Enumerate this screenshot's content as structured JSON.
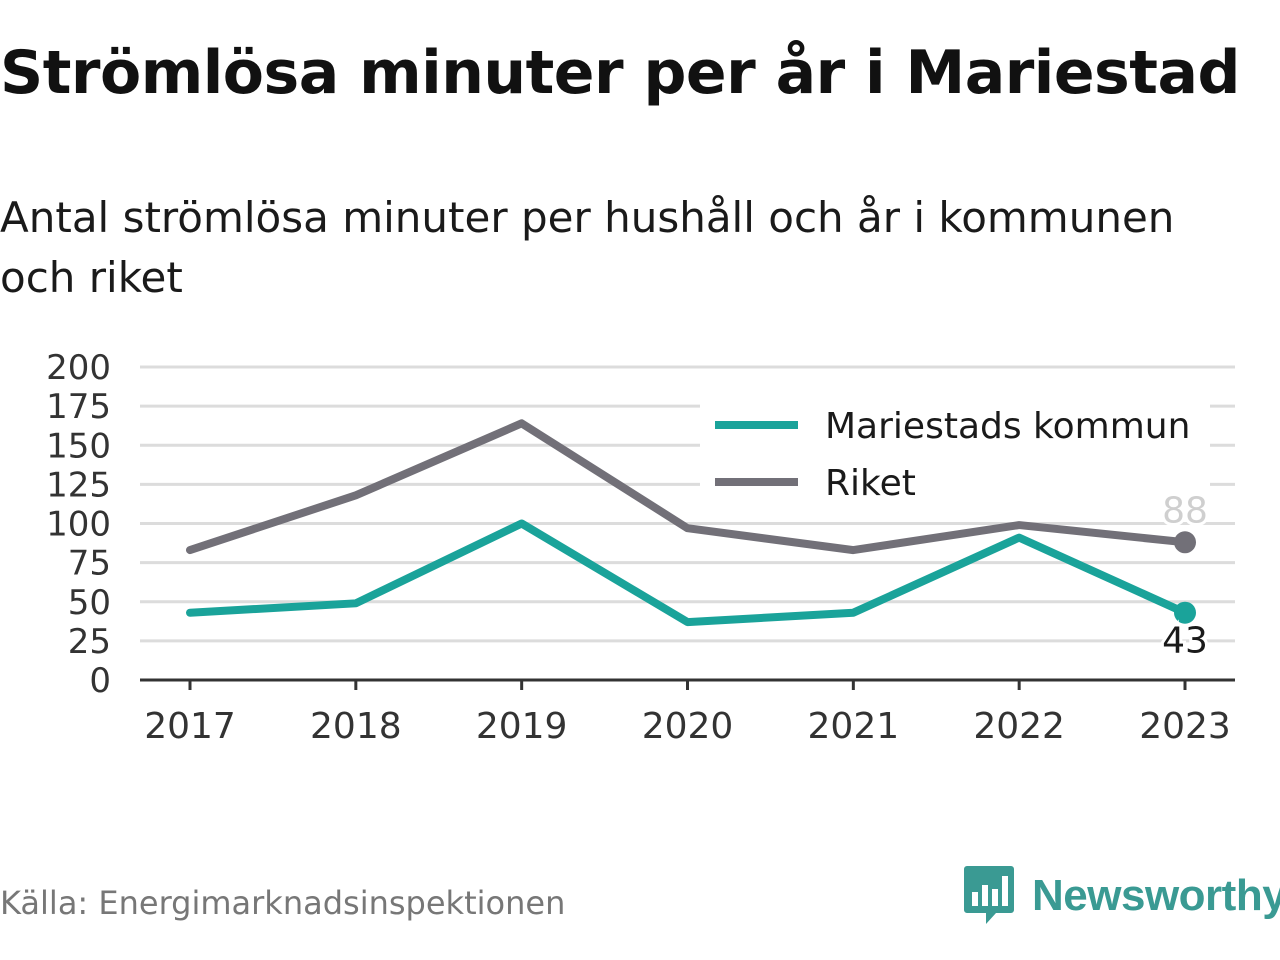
{
  "header": {
    "title": "Strömlösa minuter per år i Mariestad",
    "subtitle": "Antal strömlösa minuter per hushåll och år i kommunen och riket"
  },
  "footer": {
    "source": "Källa: Energimarknadsinspektionen",
    "brand": "Newsworthy"
  },
  "colors": {
    "mariestad": "#1aa39a",
    "riket": "#727078",
    "brand": "#3a9a93"
  },
  "chart_data": {
    "type": "line",
    "categories": [
      "2017",
      "2018",
      "2019",
      "2020",
      "2021",
      "2022",
      "2023"
    ],
    "ylim": [
      0,
      200
    ],
    "yticks": [
      "0",
      "25",
      "50",
      "75",
      "100",
      "125",
      "150",
      "175",
      "200"
    ],
    "grid": true,
    "legend_position": "top-right",
    "series": [
      {
        "name": "Mariestads kommun",
        "values": [
          43,
          49,
          100,
          37,
          43,
          91,
          43
        ],
        "end_label": "43"
      },
      {
        "name": "Riket",
        "values": [
          83,
          118,
          164,
          97,
          83,
          99,
          88
        ],
        "end_label": "88"
      }
    ]
  }
}
